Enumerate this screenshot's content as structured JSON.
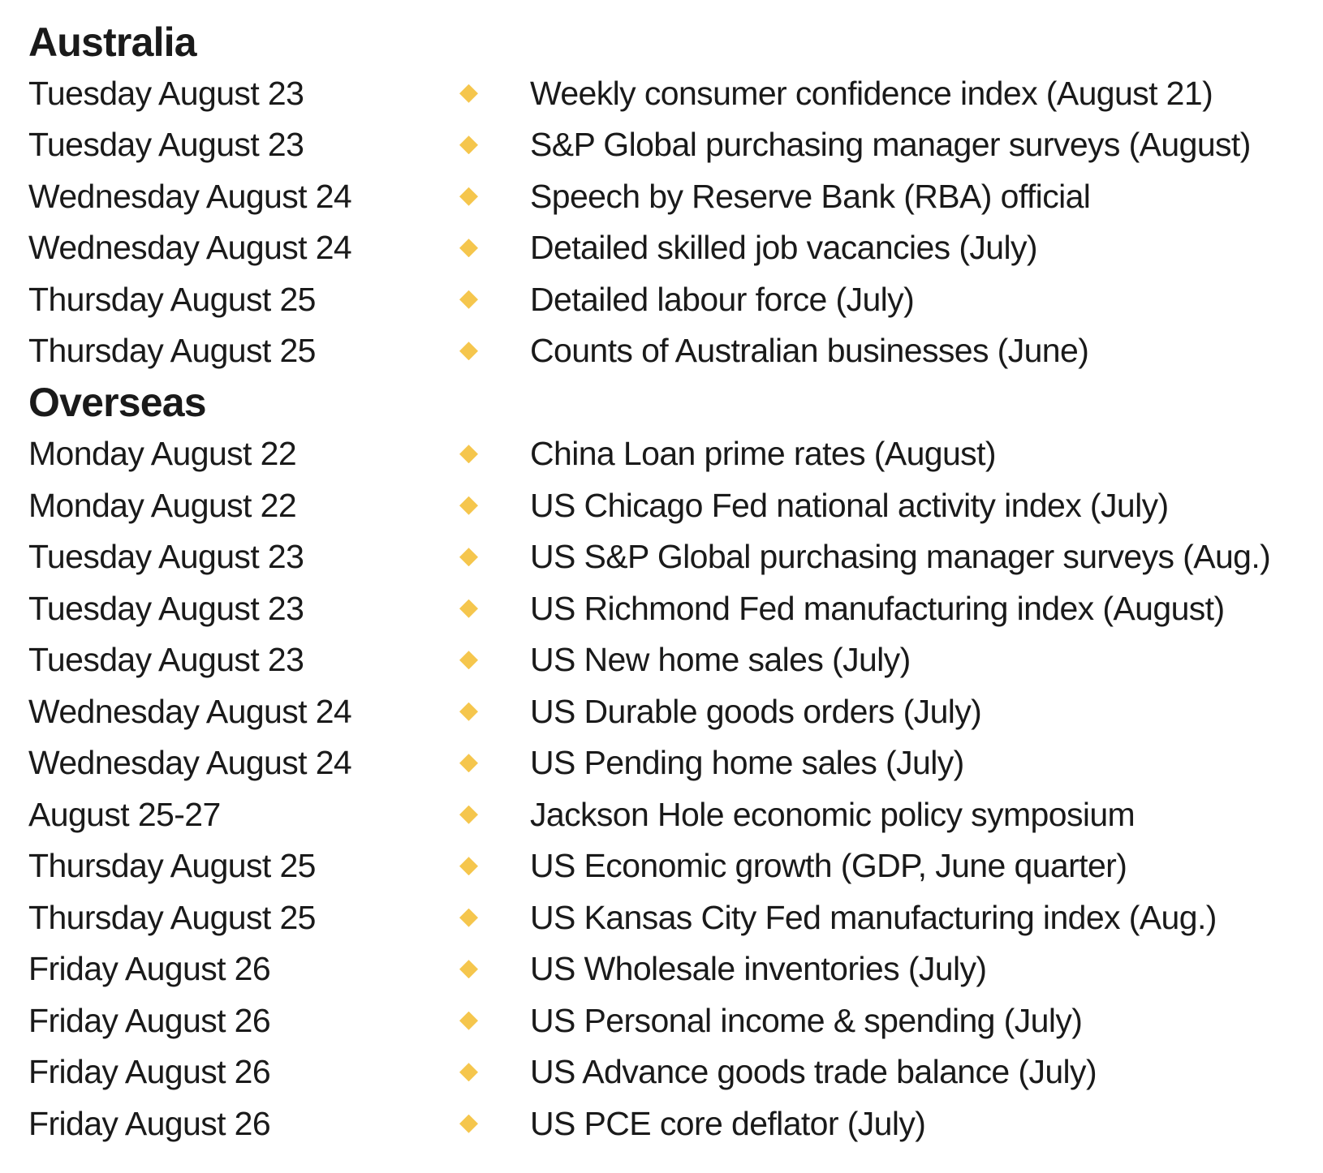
{
  "accent_color": "#F5C64D",
  "text_color": "#1A1A1A",
  "bullet_icon": "diamond-icon",
  "sections": [
    {
      "heading": "Australia",
      "rows": [
        {
          "date": "Tuesday August 23",
          "event": "Weekly consumer confidence index (August 21)"
        },
        {
          "date": "Tuesday August 23",
          "event": "S&P Global purchasing manager surveys (August)"
        },
        {
          "date": "Wednesday August 24",
          "event": "Speech by Reserve Bank (RBA) official"
        },
        {
          "date": "Wednesday August 24",
          "event": "Detailed skilled job vacancies (July)"
        },
        {
          "date": "Thursday August 25",
          "event": "Detailed labour force (July)"
        },
        {
          "date": "Thursday August 25",
          "event": "Counts of Australian businesses (June)"
        }
      ]
    },
    {
      "heading": "Overseas",
      "rows": [
        {
          "date": "Monday August 22",
          "event": "China Loan prime rates (August)"
        },
        {
          "date": "Monday August 22",
          "event": "US Chicago Fed national activity index (July)"
        },
        {
          "date": "Tuesday August 23",
          "event": "US S&P Global purchasing manager surveys (Aug.)"
        },
        {
          "date": "Tuesday August 23",
          "event": "US Richmond Fed manufacturing index (August)"
        },
        {
          "date": "Tuesday August 23",
          "event": "US New home sales (July)"
        },
        {
          "date": "Wednesday August 24",
          "event": "US Durable goods orders (July)"
        },
        {
          "date": "Wednesday August 24",
          "event": "US Pending home sales (July)"
        },
        {
          "date": "August 25-27",
          "event": "Jackson Hole economic policy symposium"
        },
        {
          "date": "Thursday August 25",
          "event": "US Economic growth (GDP, June quarter)"
        },
        {
          "date": "Thursday August 25",
          "event": "US Kansas City Fed manufacturing index (Aug.)"
        },
        {
          "date": "Friday August 26",
          "event": "US Wholesale inventories (July)"
        },
        {
          "date": "Friday August 26",
          "event": "US Personal income & spending (July)"
        },
        {
          "date": "Friday August 26",
          "event": "US Advance goods trade balance (July)"
        },
        {
          "date": "Friday August 26",
          "event": "US PCE core deflator (July)"
        }
      ]
    }
  ]
}
